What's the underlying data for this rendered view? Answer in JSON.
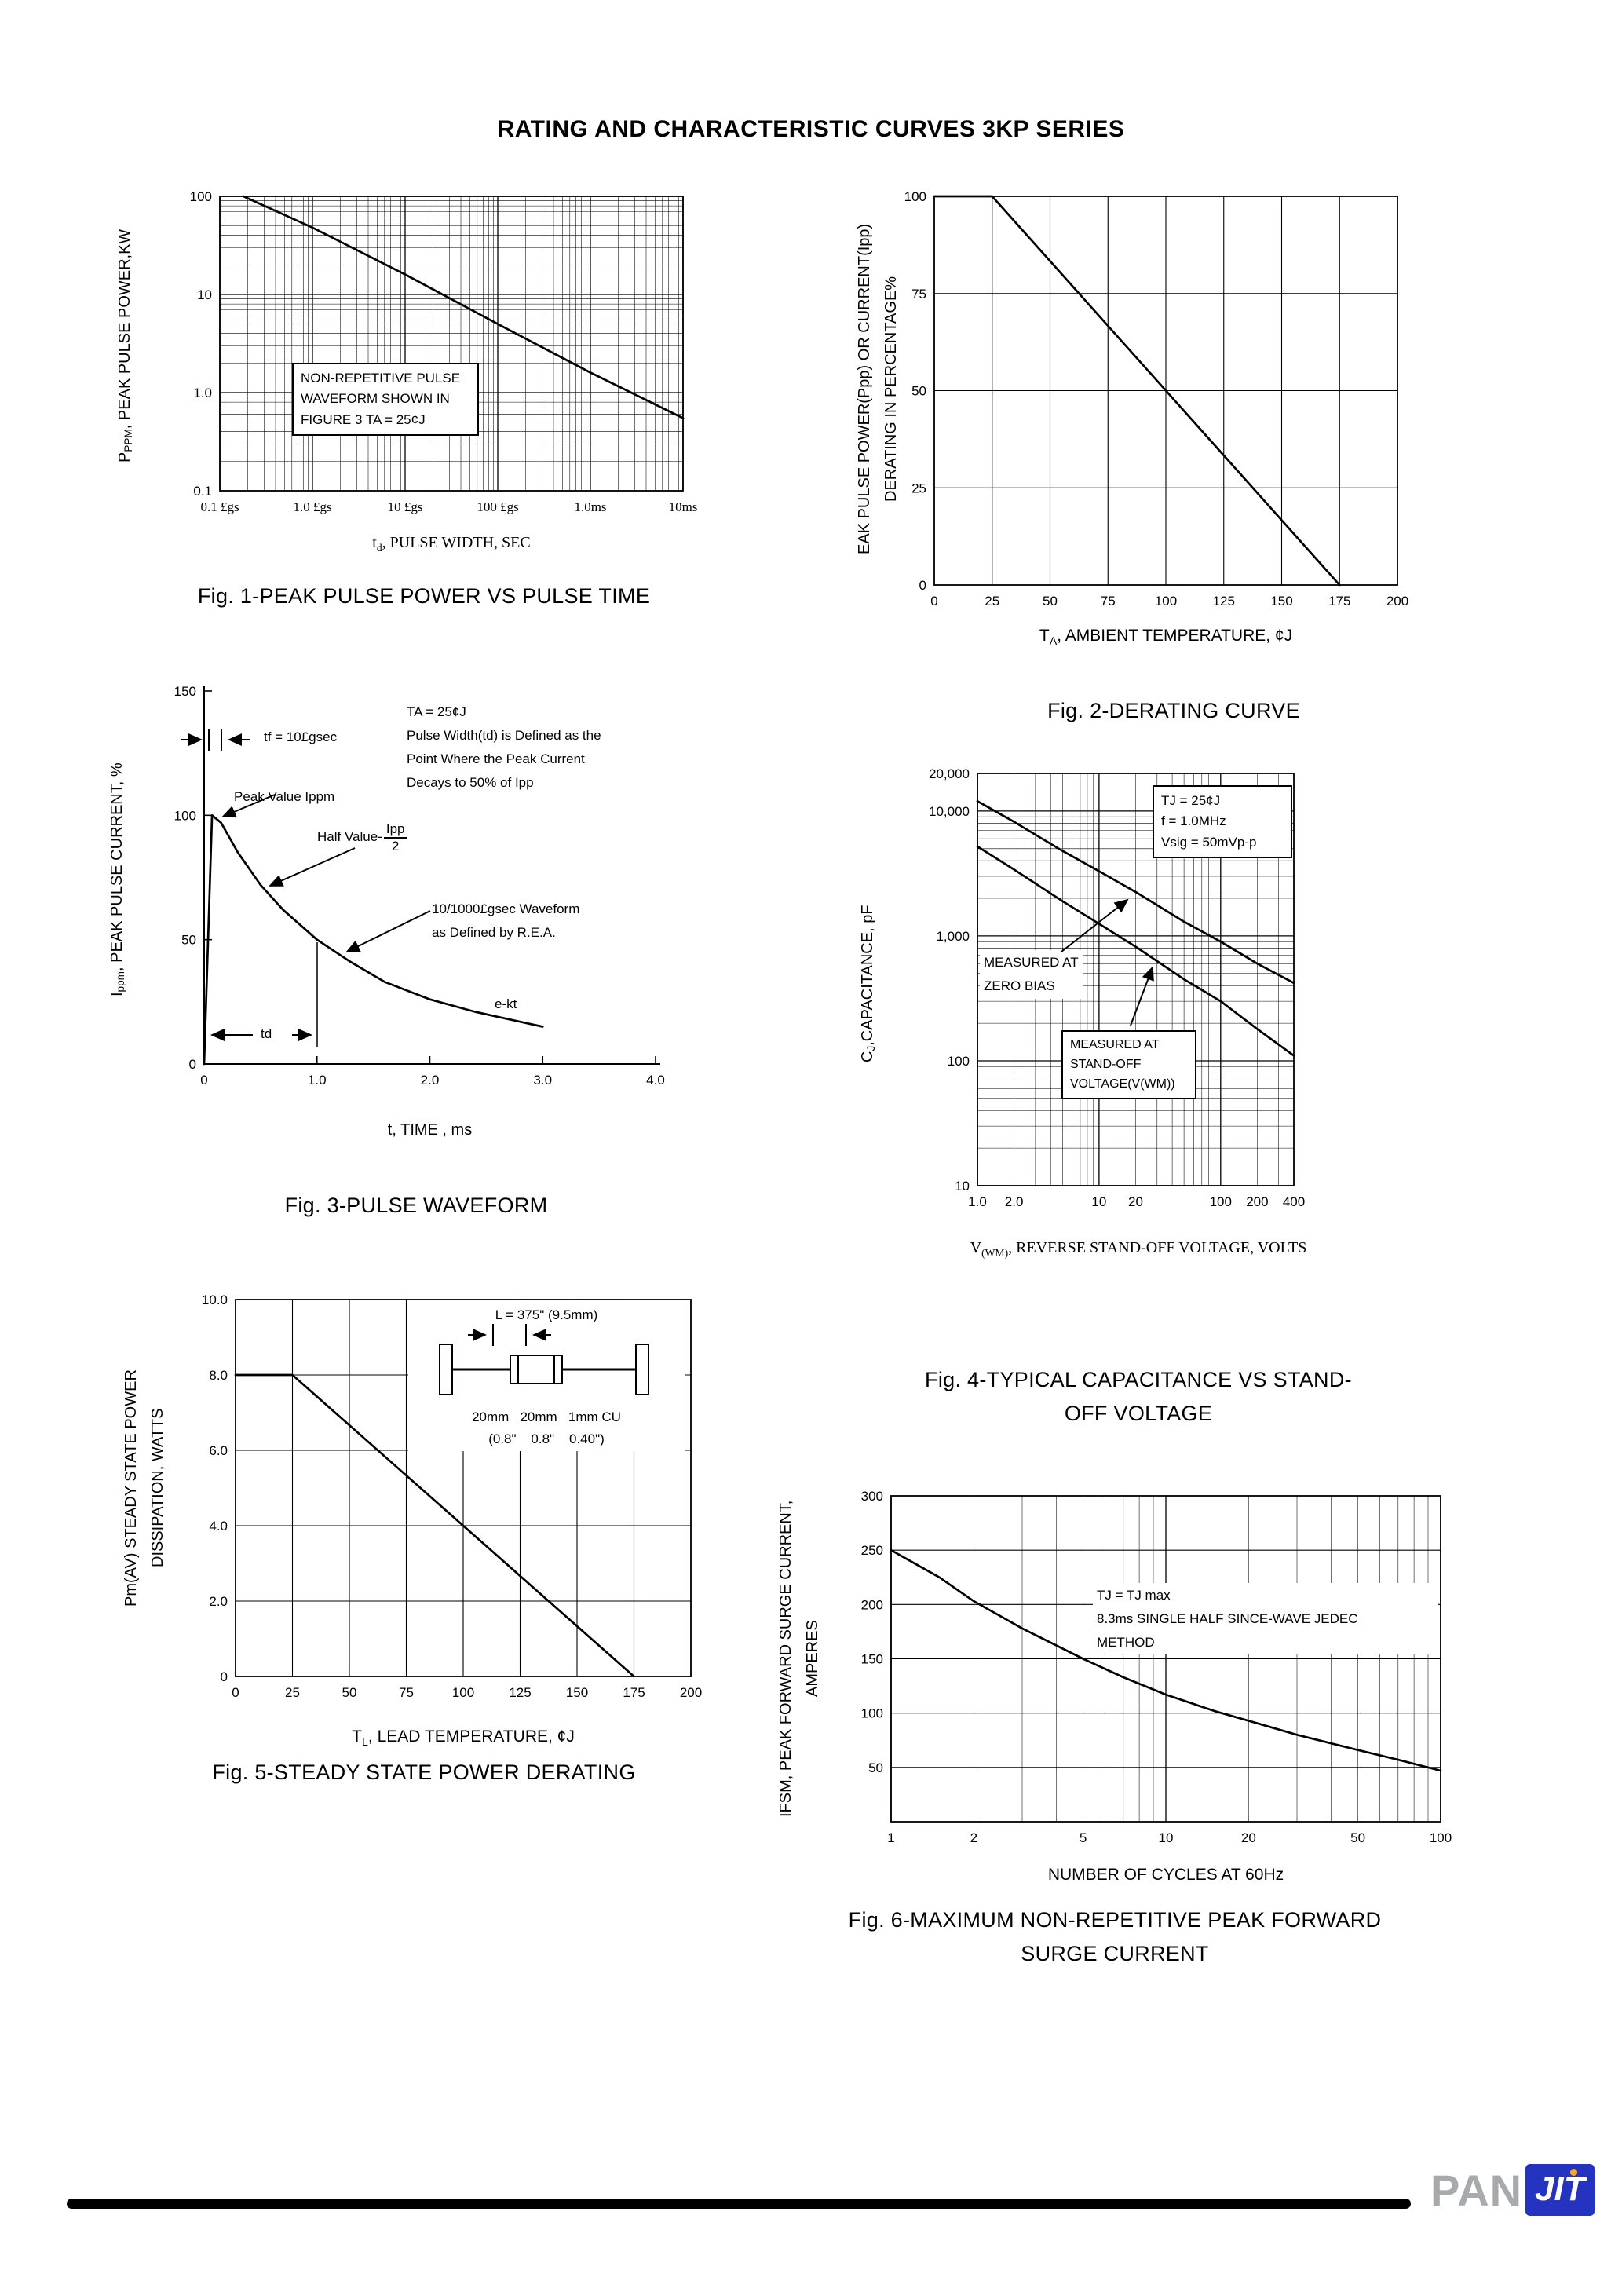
{
  "header": {
    "title": "RATING AND CHARACTERISTIC CURVES 3KP SERIES"
  },
  "chart_data": [
    {
      "id": "fig1",
      "type": "line",
      "caption": "Fig. 1-PEAK PULSE POWER VS PULSE TIME",
      "x": {
        "scale": "log",
        "min": 1e-07,
        "max": 0.01,
        "grid": "log",
        "ticks": [
          [
            1e-07,
            "0.1 £gs"
          ],
          [
            1e-06,
            "1.0 £gs"
          ],
          [
            1e-05,
            "10 £gs"
          ],
          [
            0.0001,
            "100 £gs"
          ],
          [
            0.001,
            "1.0ms"
          ],
          [
            0.01,
            "10ms"
          ]
        ],
        "label_pre": "t",
        "label_sub": "d",
        "label_post": ", PULSE WIDTH, SEC"
      },
      "y": {
        "scale": "log",
        "min": 0.1,
        "max": 100,
        "grid": "log",
        "ticks": [
          [
            100,
            "100"
          ],
          [
            10,
            "10"
          ],
          [
            1,
            "1.0"
          ],
          [
            0.1,
            "0.1"
          ]
        ],
        "label_pre": "P",
        "label_sub": "PPM",
        "label_post": ", PEAK PULSE POWER,KW"
      },
      "series": [
        {
          "name": "peak-pulse-power",
          "points": [
            [
              1.8e-07,
              100
            ],
            [
              1e-06,
              48
            ],
            [
              1e-05,
              16
            ],
            [
              0.0001,
              5
            ],
            [
              0.001,
              1.6
            ],
            [
              0.01,
              0.55
            ]
          ]
        }
      ],
      "annotations": {
        "note": [
          "NON-REPETITIVE PULSE",
          "WAVEFORM SHOWN IN",
          "FIGURE 3 TA = 25¢J"
        ]
      }
    },
    {
      "id": "fig2",
      "type": "line",
      "caption": "Fig. 2-DERATING CURVE",
      "x": {
        "scale": "linear",
        "min": 0,
        "max": 200,
        "grid": "ticks",
        "ticks": [
          [
            0,
            "0"
          ],
          [
            25,
            "25"
          ],
          [
            50,
            "50"
          ],
          [
            75,
            "75"
          ],
          [
            100,
            "100"
          ],
          [
            125,
            "125"
          ],
          [
            150,
            "150"
          ],
          [
            175,
            "175"
          ],
          [
            200,
            "200"
          ]
        ],
        "label_pre": "T",
        "label_sub": "A",
        "label_post": ", AMBIENT TEMPERATURE,  ¢J"
      },
      "y": {
        "scale": "linear",
        "min": 0,
        "max": 100,
        "grid": "ticks",
        "ticks": [
          [
            0,
            "0"
          ],
          [
            25,
            "25"
          ],
          [
            50,
            "50"
          ],
          [
            75,
            "75"
          ],
          [
            100,
            "100"
          ]
        ],
        "label_line1": "EAK PULSE POWER(Ppp) OR CURRENT(Ipp)",
        "label_line2": "DERATING IN PERCENTAGE%"
      },
      "series": [
        {
          "name": "derating",
          "points": [
            [
              0,
              100
            ],
            [
              25,
              100
            ],
            [
              175,
              0
            ]
          ]
        }
      ]
    },
    {
      "id": "fig3",
      "type": "line",
      "caption": "Fig. 3-PULSE WAVEFORM",
      "x": {
        "scale": "linear",
        "min": 0,
        "max": 4,
        "grid": "none",
        "ticks": [
          [
            0,
            "0"
          ],
          [
            1,
            "1.0"
          ],
          [
            2,
            "2.0"
          ],
          [
            3,
            "3.0"
          ],
          [
            4,
            "4.0"
          ]
        ],
        "label_pre": "t",
        "label_sub": "",
        "label_post": ", TIME , ms"
      },
      "y": {
        "scale": "linear",
        "min": 0,
        "max": 150,
        "grid": "none",
        "ticks": [
          [
            0,
            "0"
          ],
          [
            50,
            "50"
          ],
          [
            100,
            "100"
          ],
          [
            150,
            "150"
          ]
        ],
        "label_pre": "I",
        "label_sub": "ppm",
        "label_post": ", PEAK PULSE CURRENT, %"
      },
      "series": [
        {
          "name": "pulse-waveform",
          "points": [
            [
              0,
              0
            ],
            [
              0.07,
              100
            ],
            [
              0.15,
              97
            ],
            [
              0.3,
              85
            ],
            [
              0.5,
              72
            ],
            [
              0.7,
              62
            ],
            [
              1,
              50
            ],
            [
              1.3,
              41
            ],
            [
              1.6,
              33
            ],
            [
              2,
              26
            ],
            [
              2.4,
              21
            ],
            [
              2.8,
              17
            ],
            [
              3,
              15
            ]
          ]
        }
      ],
      "annotations": {
        "ta": "TA = 25¢J",
        "tf": "tf = 10£gsec",
        "pw1": "Pulse Width(td) is Defined as the",
        "pw2": "Point Where the Peak Current",
        "pw3": "Decays to 50% of Ipp",
        "peak": "Peak Value Ippm",
        "half_label": "Half Value-",
        "half_num": "Ipp",
        "half_den": "2",
        "wave1": "10/1000£gsec Waveform",
        "wave2": "as Defined by R.E.A.",
        "ekt": "e-kt",
        "td": "td"
      }
    },
    {
      "id": "fig4",
      "type": "line",
      "caption": "Fig. 4-TYPICAL CAPACITANCE VS STAND-OFF VOLTAGE",
      "x": {
        "scale": "log",
        "min": 1,
        "max": 400,
        "grid": "log",
        "ticks": [
          [
            1,
            "1.0"
          ],
          [
            2,
            "2.0"
          ],
          [
            10,
            "10"
          ],
          [
            20,
            "20"
          ],
          [
            100,
            "100"
          ],
          [
            200,
            "200"
          ],
          [
            400,
            "400"
          ]
        ],
        "label_pre": "V",
        "label_sub": "(WM)",
        "label_post": ", REVERSE STAND-OFF VOLTAGE, VOLTS"
      },
      "y": {
        "scale": "log",
        "min": 10,
        "max": 20000,
        "grid": "log",
        "ticks": [
          [
            10,
            "10"
          ],
          [
            100,
            "100"
          ],
          [
            1000,
            "1,000"
          ],
          [
            10000,
            "10,000"
          ],
          [
            20000,
            "20,000"
          ]
        ],
        "label_pre": "C",
        "label_sub": "J",
        "label_post": ",CAPACITANCE, pF"
      },
      "series": [
        {
          "name": "zero-bias",
          "points": [
            [
              1,
              12000
            ],
            [
              2,
              8200
            ],
            [
              5,
              4800
            ],
            [
              10,
              3300
            ],
            [
              20,
              2250
            ],
            [
              50,
              1300
            ],
            [
              100,
              900
            ],
            [
              200,
              600
            ],
            [
              400,
              420
            ]
          ]
        },
        {
          "name": "stand-off-voltage",
          "points": [
            [
              1,
              5200
            ],
            [
              2,
              3400
            ],
            [
              5,
              1900
            ],
            [
              10,
              1250
            ],
            [
              20,
              820
            ],
            [
              50,
              450
            ],
            [
              100,
              300
            ],
            [
              200,
              180
            ],
            [
              400,
              110
            ]
          ]
        }
      ],
      "annotations": {
        "cond": [
          "TJ = 25¢J",
          "f = 1.0MHz",
          "Vsig = 50mVp-p"
        ],
        "zero": [
          "MEASURED AT",
          "ZERO BIAS"
        ],
        "standoff": [
          "MEASURED AT",
          "STAND-OFF",
          "VOLTAGE(V(WM))"
        ]
      }
    },
    {
      "id": "fig5",
      "type": "line",
      "caption": "Fig. 5-STEADY STATE POWER DERATING",
      "x": {
        "scale": "linear",
        "min": 0,
        "max": 200,
        "grid": "ticks",
        "ticks": [
          [
            0,
            "0"
          ],
          [
            25,
            "25"
          ],
          [
            50,
            "50"
          ],
          [
            75,
            "75"
          ],
          [
            100,
            "100"
          ],
          [
            125,
            "125"
          ],
          [
            150,
            "150"
          ],
          [
            175,
            "175"
          ],
          [
            200,
            "200"
          ]
        ],
        "label_pre": "T",
        "label_sub": "L",
        "label_post": ", LEAD TEMPERATURE,  ¢J"
      },
      "y": {
        "scale": "linear",
        "min": 0,
        "max": 10,
        "grid": "ticks",
        "ticks": [
          [
            0,
            "0"
          ],
          [
            2,
            "2.0"
          ],
          [
            4,
            "4.0"
          ],
          [
            6,
            "6.0"
          ],
          [
            8,
            "8.0"
          ],
          [
            10,
            "10.0"
          ]
        ],
        "label_line1": "Pm(AV) STEADY STATE POWER",
        "label_line2": "DISSIPATION, WATTS"
      },
      "series": [
        {
          "name": "power-derating",
          "points": [
            [
              0,
              8
            ],
            [
              25,
              8
            ],
            [
              175,
              0
            ]
          ]
        }
      ],
      "annotations": {
        "l_dim": "L = 375\" (9.5mm)",
        "dims": "20mm   20mm   1mm CU",
        "dims2": "(0.8\"    0.8\"    0.40\")"
      }
    },
    {
      "id": "fig6",
      "type": "line",
      "caption": "Fig. 6-MAXIMUM NON-REPETITIVE PEAK FORWARD SURGE CURRENT",
      "x": {
        "scale": "log",
        "min": 1,
        "max": 100,
        "grid": "log",
        "ticks": [
          [
            1,
            "1"
          ],
          [
            2,
            "2"
          ],
          [
            5,
            "5"
          ],
          [
            10,
            "10"
          ],
          [
            20,
            "20"
          ],
          [
            50,
            "50"
          ],
          [
            100,
            "100"
          ]
        ],
        "label_pre": "",
        "label_sub": "",
        "label_post": "NUMBER OF CYCLES AT 60Hz"
      },
      "y": {
        "scale": "linear",
        "min": 0,
        "max": 300,
        "grid": "ticks",
        "ticks": [
          [
            50,
            "50"
          ],
          [
            100,
            "100"
          ],
          [
            150,
            "150"
          ],
          [
            200,
            "200"
          ],
          [
            250,
            "250"
          ],
          [
            300,
            "300"
          ]
        ],
        "label_line1": "IFSM, PEAK FORWARD SURGE CURRENT,",
        "label_line2": "AMPERES"
      },
      "series": [
        {
          "name": "surge-current",
          "points": [
            [
              1,
              250
            ],
            [
              1.5,
              225
            ],
            [
              2,
              203
            ],
            [
              3,
              178
            ],
            [
              5,
              150
            ],
            [
              7,
              133
            ],
            [
              10,
              117
            ],
            [
              15,
              102
            ],
            [
              20,
              93
            ],
            [
              30,
              80
            ],
            [
              50,
              66
            ],
            [
              70,
              57
            ],
            [
              100,
              47
            ]
          ]
        }
      ],
      "annotations": {
        "cond": [
          "TJ = TJ max",
          "8.3ms SINGLE HALF SINCE-WAVE JEDEC",
          "METHOD"
        ]
      }
    }
  ],
  "footer": {
    "brand_pan": "PAN",
    "brand_jit": "JIT"
  }
}
